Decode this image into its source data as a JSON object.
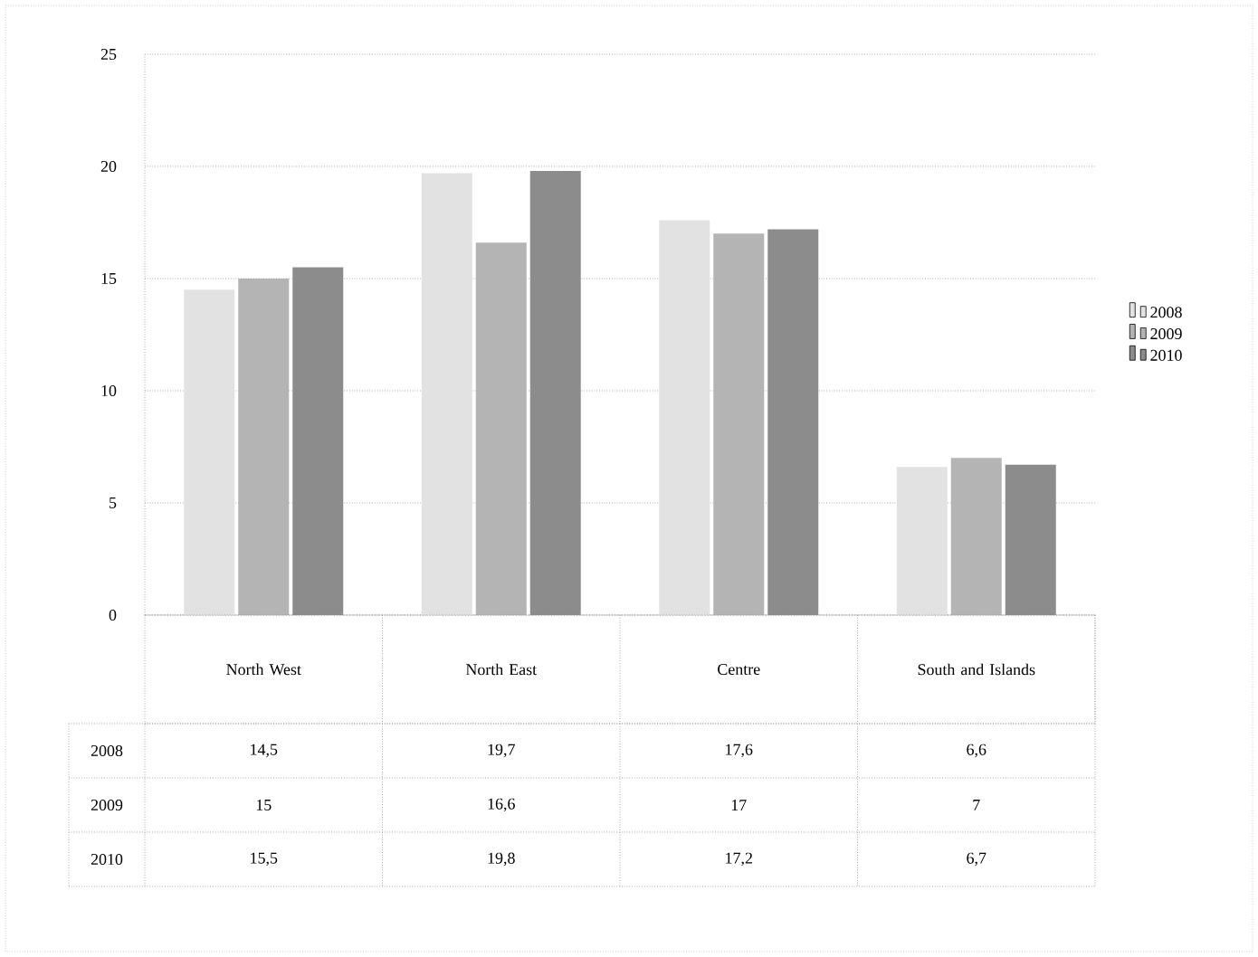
{
  "chart_data": {
    "type": "bar",
    "categories": [
      "North West",
      "North East",
      "Centre",
      "South and Islands"
    ],
    "series": [
      {
        "name": "2008",
        "color": "#e2e2e2",
        "values": [
          14.5,
          19.7,
          17.6,
          6.6
        ],
        "value_labels": [
          "14,5",
          "19,7",
          "17,6",
          "6,6"
        ]
      },
      {
        "name": "2009",
        "color": "#b4b4b4",
        "values": [
          15,
          16.6,
          17,
          7
        ],
        "value_labels": [
          "15",
          "16,6",
          "17",
          "7"
        ]
      },
      {
        "name": "2010",
        "color": "#8c8c8c",
        "values": [
          15.5,
          19.8,
          17.2,
          6.7
        ],
        "value_labels": [
          "15,5",
          "19,8",
          "17,2",
          "6,7"
        ]
      }
    ],
    "ylim": [
      0,
      25
    ],
    "yticks": [
      0,
      5,
      10,
      15,
      20,
      25
    ],
    "grid": "y",
    "legend": "right"
  }
}
